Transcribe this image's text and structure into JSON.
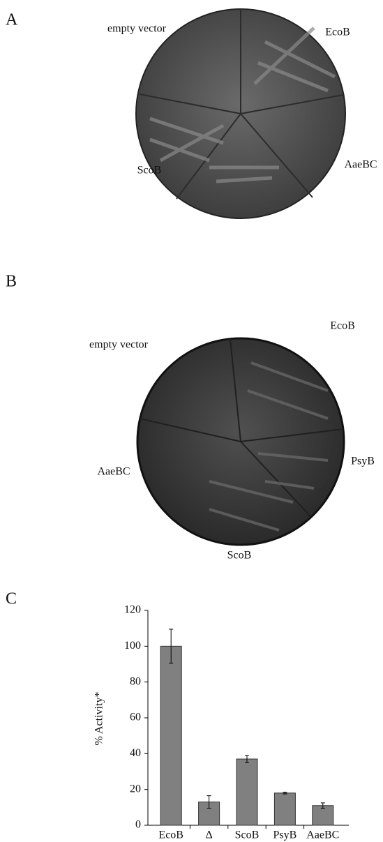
{
  "panels": [
    {
      "label": "A",
      "plate_labels": [
        "empty vector",
        "EcoB",
        "AaeBC",
        "ScoB"
      ]
    },
    {
      "label": "B",
      "plate_labels": [
        "empty vector",
        "EcoB",
        "PsyB",
        "AaeBC",
        "ScoB"
      ]
    },
    {
      "label": "C"
    }
  ],
  "chart_data": {
    "type": "bar",
    "y_label": "% Activity*",
    "categories": [
      "EcoB",
      "Δ",
      "ScoB",
      "PsyB",
      "AaeBC"
    ],
    "values": [
      100,
      13,
      37,
      18,
      11
    ],
    "errors": [
      9.5,
      3.5,
      2,
      0.5,
      1.5
    ],
    "color": "#808080",
    "ylim": [
      0,
      120
    ],
    "yticks": [
      0,
      20,
      40,
      60,
      80,
      100,
      120
    ],
    "grid": false
  }
}
